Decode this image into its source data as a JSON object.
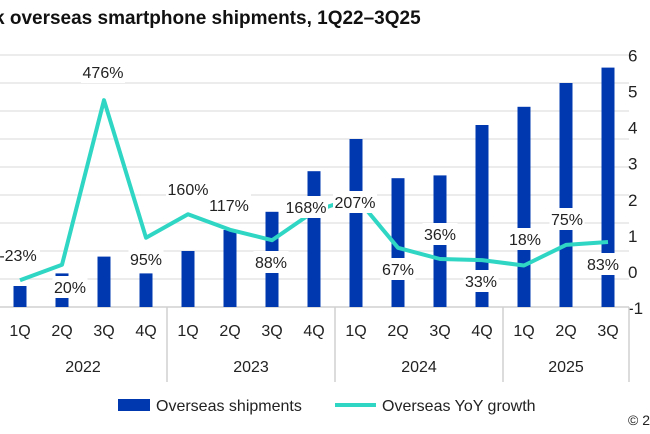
{
  "title": "k overseas smartphone shipments, 1Q22–3Q25",
  "copyright": "© 2",
  "colors": {
    "bars": "#0038b0",
    "line": "#2fd6c3",
    "grid": "#e6e6e6",
    "text": "#222222"
  },
  "chart_data": {
    "type": "bar+line",
    "categories": [
      "1Q",
      "2Q",
      "3Q",
      "4Q",
      "1Q",
      "2Q",
      "3Q",
      "4Q",
      "1Q",
      "2Q",
      "3Q",
      "4Q",
      "1Q",
      "2Q",
      "3Q"
    ],
    "groups": [
      {
        "label": "2022",
        "count": 4
      },
      {
        "label": "2023",
        "count": 4
      },
      {
        "label": "2024",
        "count": 4
      },
      {
        "label": "2025",
        "count": 3
      }
    ],
    "series": [
      {
        "name": "Overseas shipments",
        "type": "bar",
        "axis": "left",
        "values": [
          0.75,
          1.2,
          1.8,
          1.2,
          2.0,
          2.75,
          3.4,
          4.85,
          6.0,
          4.6,
          4.7,
          6.5,
          7.15,
          8.0,
          8.55
        ]
      },
      {
        "name": "Overseas YoY growth",
        "type": "line",
        "axis": "right",
        "values": [
          -23,
          20,
          476,
          95,
          160,
          117,
          88,
          168,
          207,
          67,
          36,
          33,
          18,
          75,
          83
        ],
        "labels": [
          "-23%",
          "20%",
          "476%",
          "95%",
          "160%",
          "117%",
          "88%",
          "168%",
          "207%",
          "67%",
          "36%",
          "33%",
          "18%",
          "75%",
          "83%"
        ]
      }
    ],
    "left_axis": {
      "range": [
        0,
        9
      ],
      "note_hidden": true
    },
    "right_axis": {
      "range": [
        -100,
        600
      ],
      "ticks": [
        "-1",
        "0",
        "1",
        "2",
        "3",
        "4",
        "5",
        "6"
      ]
    },
    "grid": true,
    "legend": {
      "placement": "bottom",
      "entries": [
        "Overseas shipments",
        "Overseas YoY growth"
      ]
    }
  }
}
